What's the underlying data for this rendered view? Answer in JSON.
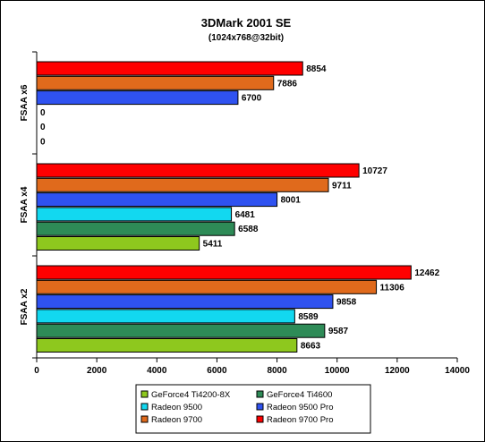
{
  "chart_data": {
    "type": "bar",
    "orientation": "horizontal",
    "title": "3DMark 2001 SE",
    "subtitle": "(1024x768@32bit)",
    "xlim": [
      0,
      14000
    ],
    "xticks": [
      0,
      2000,
      4000,
      6000,
      8000,
      10000,
      12000,
      14000
    ],
    "grid": false,
    "legend_position": "bottom",
    "groups": [
      "FSAA x6",
      "FSAA x4",
      "FSAA x2"
    ],
    "series": [
      {
        "name": "Radeon 9700 Pro",
        "color": "#ff0000",
        "values": [
          8854,
          10727,
          12462
        ],
        "labels": [
          "8854",
          "10727",
          "12462"
        ]
      },
      {
        "name": "Radeon 9700",
        "color": "#e06a1c",
        "values": [
          7886,
          9711,
          11306
        ],
        "labels": [
          "7886",
          "9711",
          "11306"
        ]
      },
      {
        "name": "Radeon 9500 Pro",
        "color": "#2f52f0",
        "values": [
          6700,
          8001,
          9858
        ],
        "labels": [
          "6700",
          "8001",
          "9858"
        ]
      },
      {
        "name": "Radeon 9500",
        "color": "#12d8f0",
        "values": [
          0,
          6481,
          8589
        ],
        "labels": [
          "0",
          "6481",
          "8589"
        ]
      },
      {
        "name": "GeForce4 Ti4600",
        "color": "#2e8b57",
        "values": [
          0,
          6588,
          9587
        ],
        "labels": [
          "0",
          "6588",
          "9587"
        ]
      },
      {
        "name": "GeForce4 Ti4200-8X",
        "color": "#8ec81e",
        "values": [
          0,
          5411,
          8663
        ],
        "labels": [
          "0",
          "5411",
          "8663"
        ]
      }
    ],
    "legend_order": [
      "GeForce4 Ti4200-8X",
      "GeForce4 Ti4600",
      "Radeon 9500",
      "Radeon 9500 Pro",
      "Radeon 9700",
      "Radeon 9700 Pro"
    ]
  }
}
